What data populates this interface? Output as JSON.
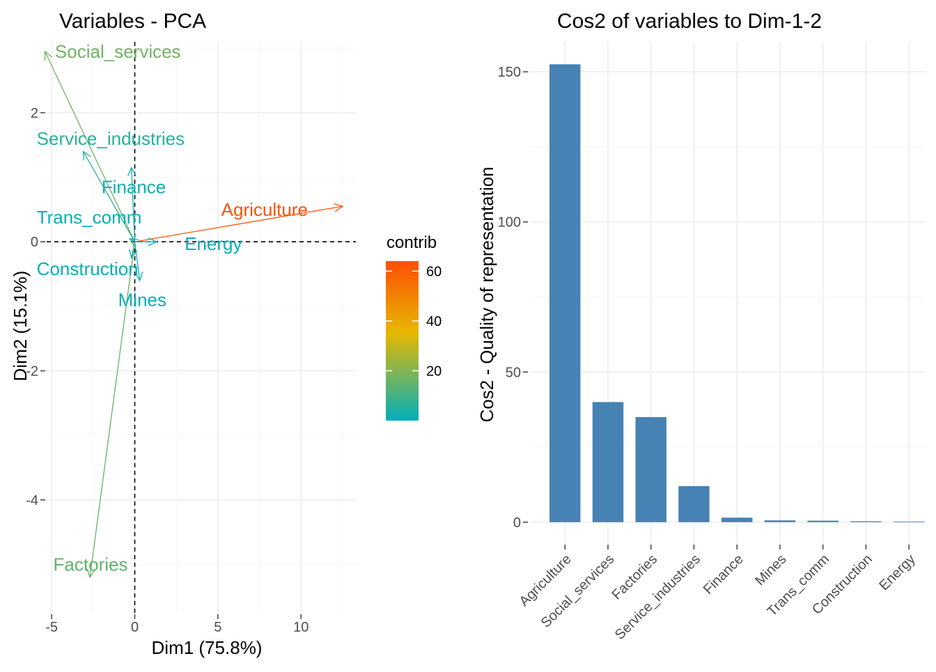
{
  "chart_data": [
    {
      "type": "scatter",
      "subtype": "pca-variable-arrows",
      "title": "Variables - PCA",
      "xlabel": "Dim1 (75.8%)",
      "ylabel": "Dim2 (15.1%)",
      "xlim": [
        -5.3,
        13.3
      ],
      "ylim": [
        -5.75,
        3.1
      ],
      "x_ticks": [
        -5,
        0,
        5,
        10
      ],
      "y_ticks": [
        -4,
        -2,
        0,
        2
      ],
      "grid": true,
      "reference_lines": "dashed lines at x=0 and y=0",
      "color_scale": {
        "title": "contrib",
        "ticks": [
          20,
          40,
          60
        ],
        "range": [
          0,
          64
        ],
        "colors": [
          "#00AFBB",
          "#E7B800",
          "#FC4E07"
        ]
      },
      "variables": [
        {
          "name": "Agriculture",
          "x": 12.5,
          "y": 0.55,
          "contrib": 63
        },
        {
          "name": "Social_services",
          "x": -5.4,
          "y": 2.95,
          "contrib": 17
        },
        {
          "name": "Service_industries",
          "x": -3.1,
          "y": 1.4,
          "contrib": 6
        },
        {
          "name": "Finance",
          "x": -0.2,
          "y": 1.15,
          "contrib": 2
        },
        {
          "name": "Trans_comm",
          "x": -0.3,
          "y": 0.05,
          "contrib": 1
        },
        {
          "name": "Energy",
          "x": 1.3,
          "y": 0.0,
          "contrib": 1
        },
        {
          "name": "Construction",
          "x": -0.2,
          "y": -0.25,
          "contrib": 1
        },
        {
          "name": "Mines",
          "x": 0.3,
          "y": -0.6,
          "contrib": 1
        },
        {
          "name": "Factories",
          "x": -2.7,
          "y": -5.2,
          "contrib": 15
        }
      ],
      "label_positions": {
        "Agriculture": [
          5.2,
          0.5
        ],
        "Social_services": [
          -4.8,
          2.95
        ],
        "Service_industries": [
          -5.9,
          1.6
        ],
        "Finance": [
          -2.0,
          0.85
        ],
        "Trans_comm": [
          -5.9,
          0.38
        ],
        "Energy": [
          3.0,
          -0.03
        ],
        "Construction": [
          -5.9,
          -0.42
        ],
        "Mines": [
          -1.0,
          -0.9
        ],
        "Factories": [
          -4.9,
          -5.0
        ]
      }
    },
    {
      "type": "bar",
      "title": "Cos2 of variables to Dim-1-2",
      "xlabel": "",
      "ylabel": "Cos2 - Quality of representation",
      "categories": [
        "Agriculture",
        "Social_services",
        "Factories",
        "Service_industries",
        "Finance",
        "Mines",
        "Trans_comm",
        "Construction",
        "Energy"
      ],
      "values": [
        152.5,
        40,
        35,
        12,
        1.5,
        0.6,
        0.5,
        0.3,
        0.2
      ],
      "ylim": [
        -7,
        160
      ],
      "y_ticks": [
        0,
        50,
        100,
        150
      ],
      "bar_color": "#4682B4",
      "grid": true
    }
  ]
}
